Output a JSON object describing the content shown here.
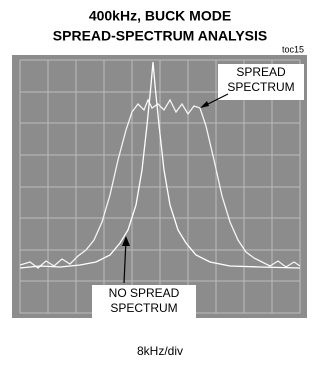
{
  "chart_data": {
    "type": "scope",
    "title": "400kHz, BUCK MODE",
    "subtitle": "SPREAD-SPECTRUM ANALYSIS",
    "figure_id": "toc15",
    "annotations": [
      "SPREAD SPECTRUM",
      "NO SPREAD SPECTRUM"
    ],
    "xlabel": "8kHz/div"
  }
}
